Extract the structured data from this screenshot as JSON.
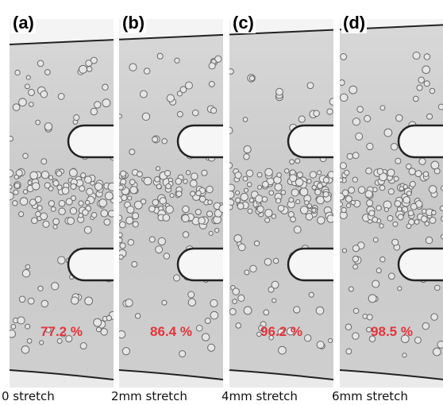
{
  "panels": [
    {
      "label": "(a)",
      "percent": "77.2 %",
      "caption": "0 stretch"
    },
    {
      "label": "(b)",
      "percent": "86.4 %",
      "caption": "2mm stretch"
    },
    {
      "label": "(c)",
      "percent": "96.2 %",
      "caption": "4mm stretch"
    },
    {
      "label": "(d)",
      "percent": "98.5 %",
      "caption": "6mm stretch"
    }
  ]
}
